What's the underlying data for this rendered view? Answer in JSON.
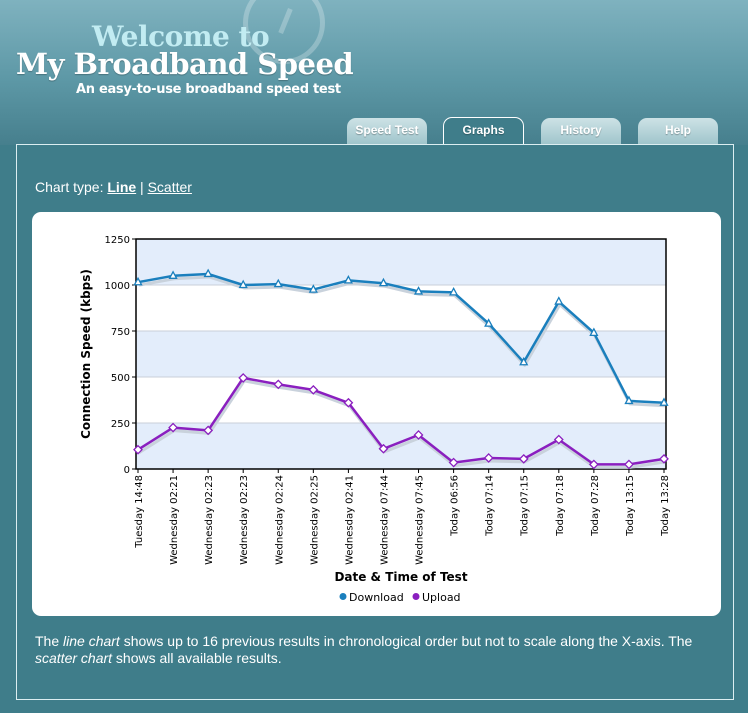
{
  "header": {
    "logo_line1": "Welcome to",
    "logo_line2": "My Broadband Speed",
    "tagline": "An easy-to-use broadband speed test"
  },
  "tabs": [
    {
      "label": "Speed Test",
      "active": false
    },
    {
      "label": "Graphs",
      "active": true
    },
    {
      "label": "History",
      "active": false
    },
    {
      "label": "Help",
      "active": false
    }
  ],
  "chart_type": {
    "label": "Chart type:",
    "line": "Line",
    "separator": "|",
    "scatter": "Scatter",
    "selected": "Line"
  },
  "description": {
    "part1": "The ",
    "em1": "line chart",
    "part2": " shows up to 16 previous results in chronological order but not to scale along the X-axis. The ",
    "em2": "scatter chart",
    "part3": " shows all available results."
  },
  "colors": {
    "background": "#3f7d8a",
    "download": "#1a7fbd",
    "upload": "#8a1fbf",
    "band": "#e3edfb"
  },
  "chart_data": {
    "type": "line",
    "xlabel": "Date & Time of Test",
    "ylabel": "Connection Speed (kbps)",
    "ylim": [
      0,
      1250
    ],
    "yticks": [
      0,
      250,
      500,
      750,
      1000,
      1250
    ],
    "legend_position": "bottom",
    "categories": [
      "Tuesday 14:48",
      "Wednesday 02:21",
      "Wednesday 02:23",
      "Wednesday 02:23",
      "Wednesday 02:24",
      "Wednesday 02:25",
      "Wednesday 02:41",
      "Wednesday 07:44",
      "Wednesday 07:45",
      "Today 06:56",
      "Today 07:14",
      "Today 07:15",
      "Today 07:18",
      "Today 07:28",
      "Today 13:15",
      "Today 13:28"
    ],
    "series": [
      {
        "name": "Download",
        "marker": "triangle",
        "values": [
          1015,
          1050,
          1060,
          1000,
          1005,
          975,
          1025,
          1010,
          965,
          960,
          790,
          580,
          910,
          740,
          370,
          360
        ]
      },
      {
        "name": "Upload",
        "marker": "diamond",
        "values": [
          105,
          225,
          210,
          495,
          460,
          430,
          360,
          110,
          185,
          35,
          60,
          55,
          160,
          25,
          25,
          55
        ]
      }
    ]
  }
}
